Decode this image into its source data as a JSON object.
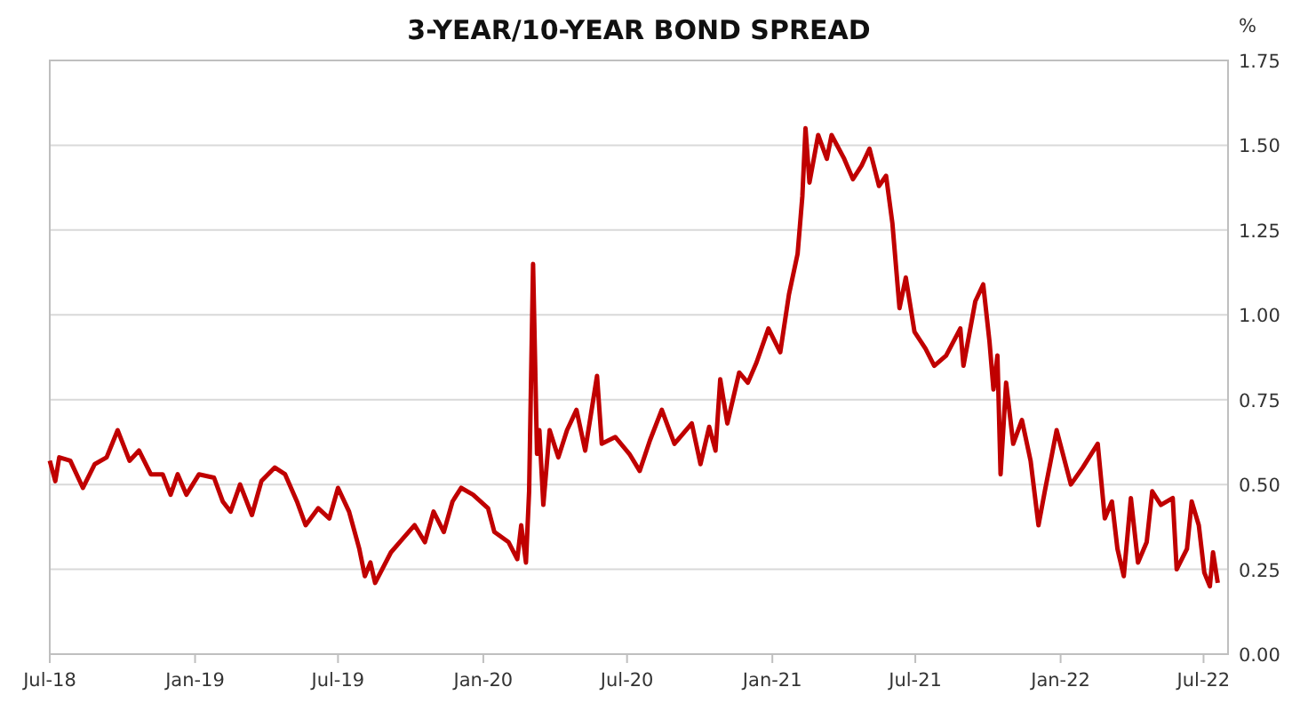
{
  "chart_data": {
    "type": "line",
    "title": "3-YEAR/10-YEAR BOND SPREAD",
    "ylabel": "%",
    "x": [
      "2018-07-01",
      "2018-07-08",
      "2018-07-13",
      "2018-07-27",
      "2018-08-12",
      "2018-08-27",
      "2018-09-11",
      "2018-09-25",
      "2018-10-10",
      "2018-10-22",
      "2018-11-06",
      "2018-11-21",
      "2018-12-01",
      "2018-12-10",
      "2018-12-21",
      "2019-01-06",
      "2019-01-25",
      "2019-02-05",
      "2019-02-15",
      "2019-02-27",
      "2019-03-14",
      "2019-03-26",
      "2019-04-12",
      "2019-04-25",
      "2019-05-10",
      "2019-05-21",
      "2019-06-06",
      "2019-06-20",
      "2019-07-01",
      "2019-07-15",
      "2019-07-28",
      "2019-08-04",
      "2019-08-11",
      "2019-08-17",
      "2019-09-06",
      "2019-09-21",
      "2019-10-06",
      "2019-10-19",
      "2019-10-30",
      "2019-11-12",
      "2019-11-23",
      "2019-12-04",
      "2019-12-19",
      "2020-01-07",
      "2020-01-15",
      "2020-02-02",
      "2020-02-13",
      "2020-02-18",
      "2020-02-24",
      "2020-02-28",
      "2020-03-04",
      "2020-03-09",
      "2020-03-12",
      "2020-03-17",
      "2020-03-25",
      "2020-04-05",
      "2020-04-16",
      "2020-04-28",
      "2020-05-09",
      "2020-05-24",
      "2020-05-30",
      "2020-06-16",
      "2020-07-04",
      "2020-07-17",
      "2020-07-30",
      "2020-08-14",
      "2020-08-30",
      "2020-09-21",
      "2020-10-02",
      "2020-10-13",
      "2020-10-21",
      "2020-10-27",
      "2020-11-05",
      "2020-11-20",
      "2020-12-01",
      "2020-12-12",
      "2020-12-27",
      "2021-01-11",
      "2021-01-22",
      "2021-02-02",
      "2021-02-08",
      "2021-02-12",
      "2021-02-17",
      "2021-02-28",
      "2021-03-11",
      "2021-03-17",
      "2021-04-02",
      "2021-04-13",
      "2021-04-24",
      "2021-05-04",
      "2021-05-16",
      "2021-05-25",
      "2021-06-02",
      "2021-06-11",
      "2021-06-19",
      "2021-06-30",
      "2021-07-14",
      "2021-07-25",
      "2021-08-09",
      "2021-08-27",
      "2021-08-31",
      "2021-09-15",
      "2021-09-25",
      "2021-10-03",
      "2021-10-08",
      "2021-10-13",
      "2021-10-17",
      "2021-10-24",
      "2021-11-02",
      "2021-11-13",
      "2021-11-24",
      "2021-12-04",
      "2021-12-12",
      "2021-12-27",
      "2022-01-14",
      "2022-01-29",
      "2022-02-17",
      "2022-02-26",
      "2022-03-07",
      "2022-03-14",
      "2022-03-22",
      "2022-03-31",
      "2022-04-09",
      "2022-04-20",
      "2022-04-27",
      "2022-05-08",
      "2022-05-23",
      "2022-05-28",
      "2022-06-10",
      "2022-06-16",
      "2022-06-25",
      "2022-07-02",
      "2022-07-09",
      "2022-07-13",
      "2022-07-19"
    ],
    "series": [
      {
        "color": "#c00000",
        "values": [
          0.57,
          0.51,
          0.58,
          0.57,
          0.49,
          0.56,
          0.58,
          0.66,
          0.57,
          0.6,
          0.53,
          0.53,
          0.47,
          0.53,
          0.47,
          0.53,
          0.52,
          0.45,
          0.42,
          0.5,
          0.41,
          0.51,
          0.55,
          0.53,
          0.45,
          0.38,
          0.43,
          0.4,
          0.49,
          0.42,
          0.31,
          0.23,
          0.27,
          0.21,
          0.3,
          0.34,
          0.38,
          0.33,
          0.42,
          0.36,
          0.45,
          0.49,
          0.47,
          0.43,
          0.36,
          0.33,
          0.28,
          0.38,
          0.27,
          0.48,
          1.15,
          0.59,
          0.66,
          0.44,
          0.66,
          0.58,
          0.66,
          0.72,
          0.6,
          0.82,
          0.62,
          0.64,
          0.59,
          0.54,
          0.63,
          0.72,
          0.62,
          0.68,
          0.56,
          0.67,
          0.6,
          0.81,
          0.68,
          0.83,
          0.8,
          0.86,
          0.96,
          0.89,
          1.06,
          1.18,
          1.35,
          1.55,
          1.39,
          1.53,
          1.46,
          1.53,
          1.46,
          1.4,
          1.44,
          1.49,
          1.38,
          1.41,
          1.27,
          1.02,
          1.11,
          0.95,
          0.9,
          0.85,
          0.88,
          0.96,
          0.85,
          1.04,
          1.09,
          0.92,
          0.78,
          0.88,
          0.53,
          0.8,
          0.62,
          0.69,
          0.57,
          0.38,
          0.48,
          0.66,
          0.5,
          0.55,
          0.62,
          0.4,
          0.45,
          0.31,
          0.23,
          0.46,
          0.27,
          0.33,
          0.48,
          0.44,
          0.46,
          0.25,
          0.31,
          0.45,
          0.38,
          0.24,
          0.2,
          0.3,
          0.21
        ]
      }
    ],
    "xlim": [
      "2018-07-01",
      "2022-08-01"
    ],
    "xticks": [
      {
        "value": "2018-07-01",
        "label": "Jul-18"
      },
      {
        "value": "2019-01-01",
        "label": "Jan-19"
      },
      {
        "value": "2019-07-01",
        "label": "Jul-19"
      },
      {
        "value": "2020-01-01",
        "label": "Jan-20"
      },
      {
        "value": "2020-07-01",
        "label": "Jul-20"
      },
      {
        "value": "2021-01-01",
        "label": "Jan-21"
      },
      {
        "value": "2021-07-01",
        "label": "Jul-21"
      },
      {
        "value": "2022-01-01",
        "label": "Jan-22"
      },
      {
        "value": "2022-07-01",
        "label": "Jul-22"
      }
    ],
    "ylim": [
      0,
      1.75
    ],
    "yticks": [
      {
        "value": 0,
        "label": "0.00"
      },
      {
        "value": 0.25,
        "label": "0.25"
      },
      {
        "value": 0.5,
        "label": "0.50"
      },
      {
        "value": 0.75,
        "label": "0.75"
      },
      {
        "value": 1,
        "label": "1.00"
      },
      {
        "value": 1.25,
        "label": "1.25"
      },
      {
        "value": 1.5,
        "label": "1.50"
      },
      {
        "value": 1.75,
        "label": "1.75"
      }
    ],
    "grid": "y",
    "marker": "none",
    "line_style": "solid"
  }
}
